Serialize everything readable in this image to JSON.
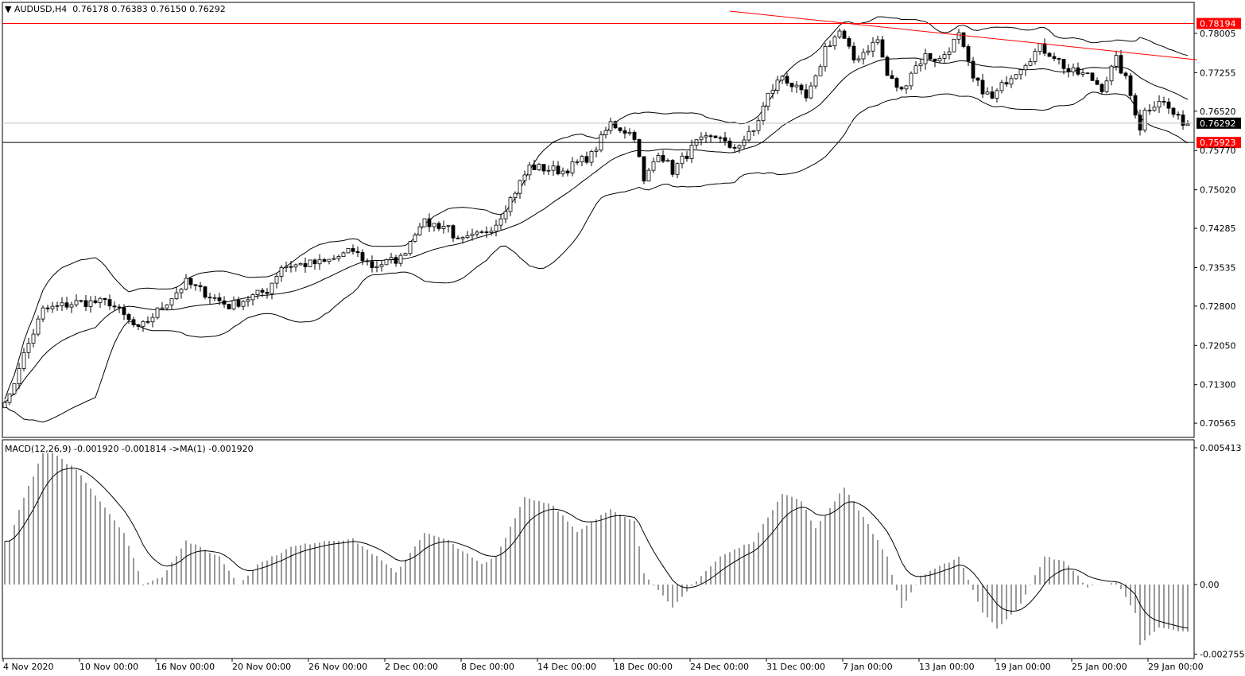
{
  "header": {
    "symbol": "AUDUSD,H4",
    "ohlc": "0.76178 0.76383 0.76150 0.76292"
  },
  "macd_header": "MACD(12,26,9) -0.001920 -0.001814  ->MA(1) -0.001920",
  "colors": {
    "line_red": "#ff0000",
    "bull": "#ffffff",
    "bear": "#000000",
    "label_black": "#000000"
  },
  "chart_data": [
    {
      "type": "candlestick",
      "title": "AUDUSD,H4",
      "indicators": [
        "Bollinger Bands (20)"
      ],
      "y_ticks": [
        "0.78005",
        "0.77255",
        "0.76520",
        "0.75770",
        "0.75020",
        "0.74285",
        "0.73535",
        "0.72800",
        "0.72050",
        "0.71300",
        "0.70565"
      ],
      "ylim": [
        0.7025,
        0.7845
      ],
      "x_ticks": [
        "4 Nov 2020",
        "10 Nov 00:00",
        "16 Nov 00:00",
        "20 Nov 00:00",
        "26 Nov 00:00",
        "2 Dec 00:00",
        "8 Dec 00:00",
        "14 Dec 00:00",
        "18 Dec 00:00",
        "24 Dec 00:00",
        "31 Dec 00:00",
        "7 Jan 00:00",
        "13 Jan 00:00",
        "19 Jan 00:00",
        "25 Jan 00:00",
        "29 Jan 00:00"
      ],
      "close_path": [
        [
          1,
          0.7105
        ],
        [
          3,
          0.7166
        ],
        [
          8,
          0.7272
        ],
        [
          15,
          0.7287
        ],
        [
          22,
          0.7287
        ],
        [
          28,
          0.7234
        ],
        [
          38,
          0.7325
        ],
        [
          47,
          0.728
        ],
        [
          55,
          0.731
        ],
        [
          58,
          0.7356
        ],
        [
          67,
          0.7363
        ],
        [
          73,
          0.7386
        ],
        [
          77,
          0.7356
        ],
        [
          83,
          0.7371
        ],
        [
          87,
          0.7439
        ],
        [
          93,
          0.7432
        ],
        [
          95,
          0.7401
        ],
        [
          100,
          0.7417
        ],
        [
          103,
          0.7439
        ],
        [
          107,
          0.75
        ],
        [
          110,
          0.7546
        ],
        [
          117,
          0.7538
        ],
        [
          123,
          0.7568
        ],
        [
          127,
          0.7629
        ],
        [
          132,
          0.7606
        ],
        [
          134,
          0.7515
        ],
        [
          137,
          0.7576
        ],
        [
          140,
          0.7538
        ],
        [
          145,
          0.7591
        ],
        [
          150,
          0.7606
        ],
        [
          152,
          0.7576
        ],
        [
          157,
          0.7614
        ],
        [
          160,
          0.7682
        ],
        [
          163,
          0.772
        ],
        [
          168,
          0.7675
        ],
        [
          170,
          0.7712
        ],
        [
          172,
          0.7773
        ],
        [
          175,
          0.7804
        ],
        [
          178,
          0.775
        ],
        [
          183,
          0.7788
        ],
        [
          185,
          0.772
        ],
        [
          188,
          0.769
        ],
        [
          190,
          0.7728
        ],
        [
          193,
          0.7758
        ],
        [
          196,
          0.775
        ],
        [
          200,
          0.7796
        ],
        [
          203,
          0.7712
        ],
        [
          207,
          0.7675
        ],
        [
          210,
          0.7712
        ],
        [
          217,
          0.7773
        ],
        [
          220,
          0.7758
        ],
        [
          223,
          0.7728
        ],
        [
          227,
          0.772
        ],
        [
          230,
          0.7697
        ],
        [
          233,
          0.775
        ],
        [
          235,
          0.7712
        ],
        [
          238,
          0.7621
        ],
        [
          239,
          0.7652
        ],
        [
          242,
          0.7675
        ],
        [
          243,
          0.7667
        ],
        [
          246,
          0.7636
        ],
        [
          248,
          0.7629
        ]
      ],
      "horizontal_lines": [
        {
          "price": 0.78194,
          "label": "0.78194",
          "color": "#ff0000"
        },
        {
          "price": 0.75923,
          "label": "0.75923",
          "color": "#000000"
        },
        {
          "price": 0.76292,
          "label": "0.76292",
          "color": "#c0c0c0"
        }
      ],
      "trendline": {
        "from": [
          152,
          0.7843
        ],
        "to": [
          250,
          0.775
        ],
        "color": "#ff0000"
      },
      "bar_count": 249
    },
    {
      "type": "bar",
      "title": "MACD(12,26,9)",
      "y_ticks": [
        "0.005413",
        "0.00",
        "-0.002755"
      ],
      "ylim": [
        -0.003,
        0.0057
      ],
      "hist_path": [
        [
          1,
          0.00173
        ],
        [
          3,
          0.00299
        ],
        [
          8,
          0.00519
        ],
        [
          10,
          0.00519
        ],
        [
          15,
          0.00456
        ],
        [
          20,
          0.0033
        ],
        [
          25,
          0.00205
        ],
        [
          29,
          0.0
        ],
        [
          33,
          0.00031
        ],
        [
          38,
          0.00173
        ],
        [
          45,
          0.0011
        ],
        [
          49,
          0.0
        ],
        [
          53,
          0.00079
        ],
        [
          60,
          0.00148
        ],
        [
          67,
          0.00173
        ],
        [
          73,
          0.00179
        ],
        [
          78,
          0.0011
        ],
        [
          82,
          0.00047
        ],
        [
          88,
          0.00205
        ],
        [
          93,
          0.00173
        ],
        [
          100,
          0.00079
        ],
        [
          103,
          0.0011
        ],
        [
          109,
          0.00346
        ],
        [
          115,
          0.00315
        ],
        [
          120,
          0.00205
        ],
        [
          127,
          0.00299
        ],
        [
          132,
          0.00252
        ],
        [
          134,
          0.00047
        ],
        [
          140,
          -0.00094
        ],
        [
          145,
          0.00016
        ],
        [
          150,
          0.0011
        ],
        [
          157,
          0.00173
        ],
        [
          163,
          0.00362
        ],
        [
          167,
          0.0033
        ],
        [
          170,
          0.0022
        ],
        [
          176,
          0.00387
        ],
        [
          180,
          0.00267
        ],
        [
          185,
          0.0011
        ],
        [
          188,
          -0.00094
        ],
        [
          192,
          0.00031
        ],
        [
          200,
          0.0011
        ],
        [
          205,
          -0.0011
        ],
        [
          208,
          -0.00173
        ],
        [
          213,
          -0.00079
        ],
        [
          218,
          0.0011
        ],
        [
          222,
          0.00094
        ],
        [
          227,
          -9e-05
        ],
        [
          233,
          9e-05
        ],
        [
          237,
          -0.0011
        ],
        [
          238,
          -0.00236
        ],
        [
          242,
          -0.00173
        ],
        [
          248,
          -0.00189
        ]
      ]
    }
  ]
}
